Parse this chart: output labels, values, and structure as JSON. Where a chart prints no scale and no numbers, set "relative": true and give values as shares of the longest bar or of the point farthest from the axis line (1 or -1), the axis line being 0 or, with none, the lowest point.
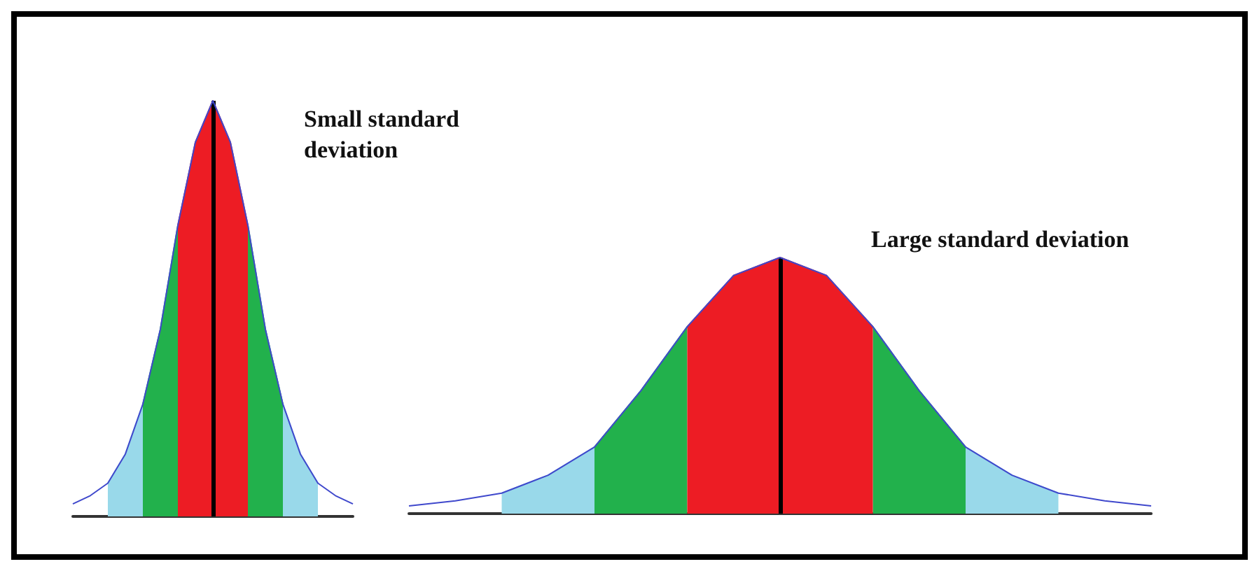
{
  "chart_data": [
    {
      "type": "area",
      "relative": true,
      "grid": false,
      "annotations": [
        "Small standard deviation"
      ],
      "categories": [
        null,
        null,
        null,
        null,
        null,
        null,
        null,
        null,
        null,
        null,
        null,
        null,
        null,
        null,
        null,
        null,
        null
      ],
      "series": [
        {
          "color": "#99d9ea",
          "values": [
            null,
            null,
            0.08,
            0.15,
            0.27,
            null,
            null,
            null,
            null,
            null,
            null,
            null,
            0.27,
            0.15,
            0.08,
            null,
            null
          ]
        },
        {
          "color": "#22b14c",
          "values": [
            null,
            null,
            null,
            null,
            0.27,
            0.45,
            0.7,
            null,
            null,
            null,
            0.7,
            0.45,
            0.27,
            null,
            null,
            null,
            null
          ]
        },
        {
          "color": "#ed1c24",
          "values": [
            null,
            null,
            null,
            null,
            null,
            null,
            0.7,
            0.9,
            1,
            0.9,
            0.7,
            null,
            null,
            null,
            null,
            null,
            null
          ]
        },
        {
          "type": "line",
          "color": "#3f48cc",
          "values": [
            0.03,
            0.05,
            0.08,
            0.15,
            0.27,
            0.45,
            0.7,
            0.9,
            1,
            0.9,
            0.7,
            0.45,
            0.27,
            0.15,
            0.08,
            0.05,
            0.03
          ]
        }
      ]
    },
    {
      "type": "area",
      "relative": true,
      "grid": false,
      "annotations": [
        "Large standard deviation"
      ],
      "categories": [
        null,
        null,
        null,
        null,
        null,
        null,
        null,
        null,
        null,
        null,
        null,
        null,
        null,
        null,
        null,
        null,
        null
      ],
      "series": [
        {
          "color": "#99d9ea",
          "values": [
            null,
            null,
            0.08,
            0.15,
            0.26,
            null,
            null,
            null,
            null,
            null,
            null,
            null,
            0.26,
            0.15,
            0.08,
            null,
            null
          ]
        },
        {
          "color": "#22b14c",
          "values": [
            null,
            null,
            null,
            null,
            0.26,
            0.48,
            0.73,
            null,
            null,
            null,
            0.73,
            0.48,
            0.26,
            null,
            null,
            null,
            null
          ]
        },
        {
          "color": "#ed1c24",
          "values": [
            null,
            null,
            null,
            null,
            null,
            null,
            0.73,
            0.93,
            1,
            0.93,
            0.73,
            null,
            null,
            null,
            null,
            null,
            null
          ]
        },
        {
          "type": "line",
          "color": "#3f48cc",
          "values": [
            0.03,
            0.05,
            0.08,
            0.15,
            0.26,
            0.48,
            0.73,
            0.93,
            1,
            0.93,
            0.73,
            0.48,
            0.26,
            0.15,
            0.08,
            0.05,
            0.03
          ]
        }
      ]
    }
  ]
}
